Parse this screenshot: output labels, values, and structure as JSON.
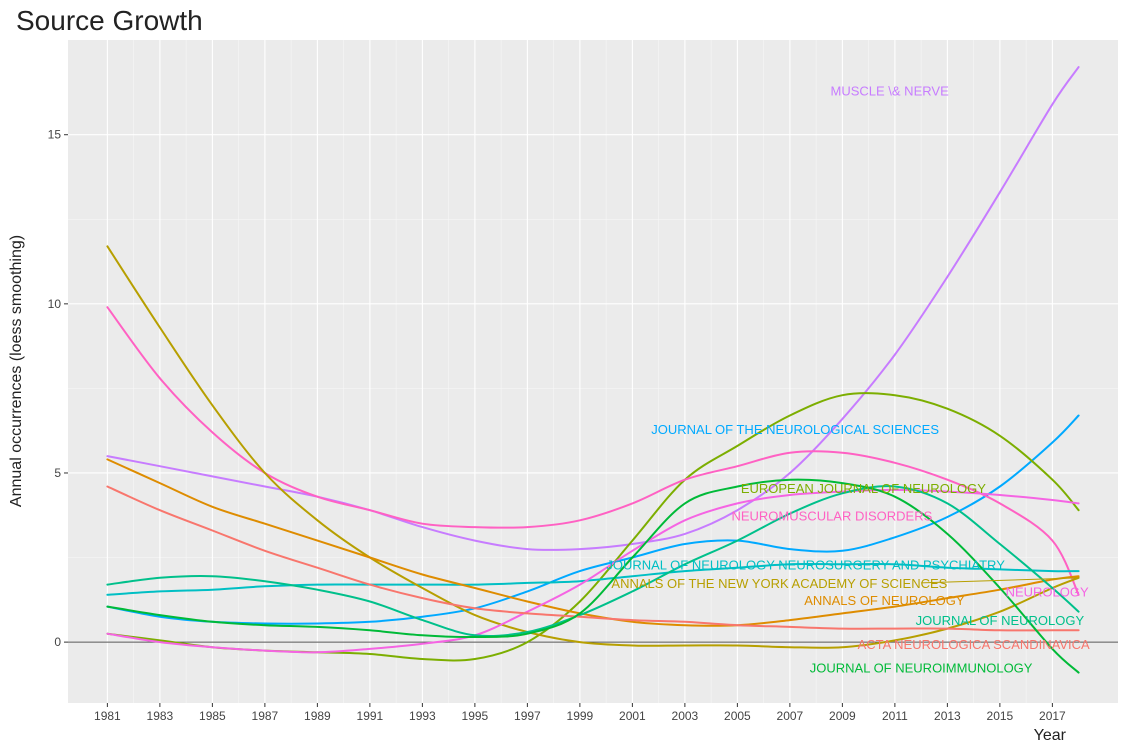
{
  "chart_data": {
    "type": "line",
    "title": "Source Growth",
    "xlabel": "Year",
    "ylabel": "Annual occurrences (loess smoothing)",
    "xlim": [
      1979.5,
      2019.5
    ],
    "ylim": [
      -1.8,
      17.8
    ],
    "x_ticks": [
      1981,
      1983,
      1985,
      1987,
      1989,
      1991,
      1993,
      1995,
      1997,
      1999,
      2001,
      2003,
      2005,
      2007,
      2009,
      2011,
      2013,
      2015,
      2017
    ],
    "y_ticks": [
      0,
      5,
      10,
      15
    ],
    "grid": true,
    "background": "#ebebeb",
    "x": [
      1981,
      1983,
      1985,
      1987,
      1989,
      1991,
      1993,
      1995,
      1997,
      1999,
      2001,
      2003,
      2005,
      2007,
      2009,
      2011,
      2013,
      2015,
      2017,
      2018
    ],
    "series": [
      {
        "name": "MUSCLE \\& NERVE",
        "color": "#c77cff",
        "values": [
          5.5,
          5.2,
          4.9,
          4.6,
          4.3,
          3.9,
          3.4,
          3.0,
          2.75,
          2.75,
          2.9,
          3.2,
          3.9,
          5.0,
          6.6,
          8.5,
          10.8,
          13.3,
          15.9,
          17.0
        ]
      },
      {
        "name": "JOURNAL OF THE NEUROLOGICAL SCIENCES",
        "color": "#00a9ff",
        "values": [
          1.05,
          0.75,
          0.6,
          0.55,
          0.55,
          0.6,
          0.75,
          1.0,
          1.5,
          2.1,
          2.5,
          2.9,
          3.0,
          2.75,
          2.7,
          3.1,
          3.7,
          4.6,
          5.9,
          6.7
        ]
      },
      {
        "name": "EUROPEAN JOURNAL OF NEUROLOGY",
        "color": "#7cae00",
        "values": [
          0.25,
          0.05,
          -0.15,
          -0.25,
          -0.3,
          -0.35,
          -0.5,
          -0.5,
          0.0,
          1.2,
          3.0,
          4.8,
          5.8,
          6.7,
          7.3,
          7.3,
          6.9,
          6.1,
          4.8,
          3.9
        ]
      },
      {
        "name": "NEUROMUSCULAR DISORDERS",
        "color": "#ff61c3",
        "values": [
          9.9,
          7.8,
          6.2,
          5.0,
          4.3,
          3.9,
          3.5,
          3.4,
          3.4,
          3.6,
          4.1,
          4.8,
          5.2,
          5.6,
          5.6,
          5.3,
          4.8,
          4.1,
          3.0,
          1.4
        ]
      },
      {
        "name": "JOURNAL OF NEUROLOGY NEUROSURGERY AND PSYCHIATRY",
        "color": "#00bfc4",
        "values": [
          1.4,
          1.5,
          1.55,
          1.65,
          1.7,
          1.7,
          1.7,
          1.7,
          1.75,
          1.8,
          1.95,
          2.1,
          2.2,
          2.3,
          2.3,
          2.3,
          2.2,
          2.15,
          2.1,
          2.1
        ]
      },
      {
        "name": "ANNALS OF THE NEW YORK ACADEMY OF SCIENCES",
        "color": "#b79f00",
        "values": [
          11.7,
          9.3,
          7.0,
          5.0,
          3.6,
          2.5,
          1.6,
          0.8,
          0.3,
          0.0,
          -0.1,
          -0.1,
          -0.1,
          -0.15,
          -0.15,
          0.05,
          0.4,
          0.9,
          1.6,
          1.9
        ]
      },
      {
        "name": "ANNALS OF NEUROLOGY",
        "color": "#de8c00",
        "values": [
          5.4,
          4.7,
          4.0,
          3.5,
          3.0,
          2.5,
          2.0,
          1.6,
          1.2,
          0.85,
          0.6,
          0.5,
          0.5,
          0.65,
          0.85,
          1.05,
          1.3,
          1.55,
          1.85,
          1.95
        ]
      },
      {
        "name": "NEUROLOGY",
        "color": "#f564e3",
        "values": [
          0.25,
          0.0,
          -0.15,
          -0.25,
          -0.3,
          -0.2,
          -0.05,
          0.2,
          0.9,
          1.7,
          2.7,
          3.6,
          4.1,
          4.35,
          4.45,
          4.5,
          4.45,
          4.35,
          4.2,
          4.1
        ]
      },
      {
        "name": "JOURNAL OF NEUROLOGY",
        "color": "#00c08b",
        "values": [
          1.7,
          1.9,
          1.95,
          1.8,
          1.55,
          1.2,
          0.65,
          0.2,
          0.3,
          0.8,
          1.5,
          2.3,
          3.0,
          3.8,
          4.4,
          4.6,
          4.1,
          2.9,
          1.6,
          0.9
        ]
      },
      {
        "name": "ACTA NEUROLOGICA SCANDINAVICA",
        "color": "#f8766d",
        "values": [
          4.6,
          3.9,
          3.3,
          2.7,
          2.2,
          1.7,
          1.3,
          1.0,
          0.85,
          0.75,
          0.65,
          0.6,
          0.5,
          0.45,
          0.4,
          0.4,
          0.4,
          0.35,
          0.35,
          0.35
        ]
      },
      {
        "name": "JOURNAL OF NEUROIMMUNOLOGY",
        "color": "#00ba38",
        "values": [
          1.05,
          0.8,
          0.6,
          0.5,
          0.45,
          0.35,
          0.2,
          0.15,
          0.25,
          0.85,
          2.5,
          4.1,
          4.6,
          4.8,
          4.7,
          4.3,
          3.2,
          1.6,
          -0.2,
          -0.9
        ]
      }
    ],
    "labels": [
      {
        "text": "MUSCLE \\& NERVE",
        "color": "#c77cff",
        "x": 2010.8,
        "y": 16.3
      },
      {
        "text": "JOURNAL OF THE NEUROLOGICAL SCIENCES",
        "color": "#00a9ff",
        "x": 2007.2,
        "y": 6.3
      },
      {
        "text": "EUROPEAN JOURNAL OF NEUROLOGY",
        "color": "#7cae00",
        "x": 2009.8,
        "y": 4.55
      },
      {
        "text": "NEUROMUSCULAR DISORDERS",
        "color": "#ff61c3",
        "x": 2008.6,
        "y": 3.75
      },
      {
        "text": "JOURNAL OF NEUROLOGY NEUROSURGERY AND PSYCHIATRY",
        "color": "#00bfc4",
        "x": 2007.6,
        "y": 2.3
      },
      {
        "text": "ANNALS OF THE NEW YORK ACADEMY OF SCIENCES",
        "color": "#b79f00",
        "x": 2006.6,
        "y": 1.75
      },
      {
        "text": "ANNALS OF NEUROLOGY",
        "color": "#de8c00",
        "x": 2010.6,
        "y": 1.25
      },
      {
        "text": "NEUROLOGY",
        "color": "#f564e3",
        "x": 2016.8,
        "y": 1.5
      },
      {
        "text": "JOURNAL OF NEUROLOGY",
        "color": "#00c08b",
        "x": 2015.0,
        "y": 0.65
      },
      {
        "text": "ACTA NEUROLOGICA SCANDINAVICA",
        "color": "#f8766d",
        "x": 2014.0,
        "y": -0.05
      },
      {
        "text": "JOURNAL OF NEUROIMMUNOLOGY",
        "color": "#00ba38",
        "x": 2012.0,
        "y": -0.75
      }
    ]
  }
}
